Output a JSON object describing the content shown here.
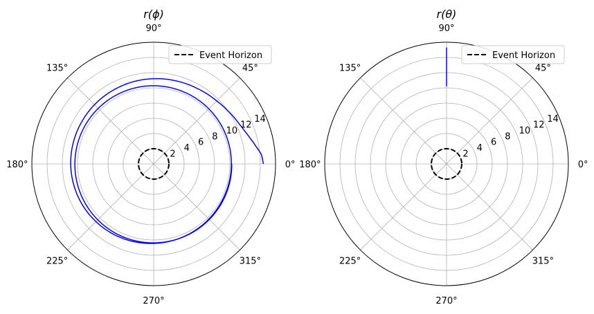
{
  "chart_data": [
    {
      "type": "line",
      "projection": "polar",
      "title": "r(ϕ)",
      "title_var": "ϕ",
      "rlim": [
        0,
        16
      ],
      "r_ticks": [
        2,
        4,
        6,
        8,
        10,
        12,
        14
      ],
      "r_tick_label_angle_deg": 22.5,
      "theta_ticks_deg": [
        0,
        45,
        90,
        135,
        180,
        225,
        270,
        315
      ],
      "theta_tick_labels": [
        "0°",
        "45°",
        "90°",
        "135°",
        "180°",
        "225°",
        "270°",
        "315°"
      ],
      "grid": true,
      "legend": {
        "placement": "upper-right",
        "entries": [
          "Event Horizon"
        ]
      },
      "series": [
        {
          "name": "Event Horizon",
          "color": "#000000",
          "style": "dashed",
          "constant_r": 2
        },
        {
          "color": "#0000ff",
          "style": "solid",
          "points": [
            [
              0.0,
              14.4
            ],
            [
              5.0,
              14.2
            ],
            [
              10.0,
              13.6
            ],
            [
              15.0,
              13.1
            ],
            [
              20.0,
              12.7
            ],
            [
              25.0,
              12.4
            ],
            [
              30.0,
              12.2
            ],
            [
              35.0,
              12.0
            ],
            [
              45.0,
              11.7
            ],
            [
              60.0,
              11.45
            ],
            [
              75.0,
              11.3
            ],
            [
              90.0,
              11.2
            ],
            [
              120.0,
              11.05
            ],
            [
              150.0,
              10.95
            ],
            [
              180.0,
              10.9
            ],
            [
              210.0,
              10.8
            ],
            [
              240.0,
              10.65
            ],
            [
              270.0,
              10.45
            ],
            [
              300.0,
              10.3
            ],
            [
              330.0,
              10.2
            ],
            [
              360.0,
              10.2
            ],
            [
              420.0,
              10.25
            ],
            [
              480.0,
              10.3
            ],
            [
              540.0,
              10.35
            ],
            [
              600.0,
              10.4
            ],
            [
              660.0,
              10.35
            ],
            [
              720.0,
              10.25
            ]
          ]
        }
      ]
    },
    {
      "type": "line",
      "projection": "polar",
      "title": "r(θ)",
      "title_var": "θ",
      "rlim": [
        0,
        16
      ],
      "r_ticks": [
        2,
        4,
        6,
        8,
        10,
        12,
        14
      ],
      "r_tick_label_angle_deg": 22.5,
      "theta_ticks_deg": [
        0,
        45,
        90,
        135,
        180,
        225,
        270,
        315
      ],
      "theta_tick_labels": [
        "0°",
        "45°",
        "90°",
        "135°",
        "180°",
        "225°",
        "270°",
        "315°"
      ],
      "grid": true,
      "legend": {
        "placement": "upper-right",
        "entries": [
          "Event Horizon"
        ]
      },
      "series": [
        {
          "name": "Event Horizon",
          "color": "#000000",
          "style": "dashed",
          "constant_r": 2
        },
        {
          "color": "#0000ff",
          "style": "solid",
          "points": [
            [
              90.0,
              10.2
            ],
            [
              90.0,
              15.3
            ]
          ]
        }
      ]
    }
  ]
}
